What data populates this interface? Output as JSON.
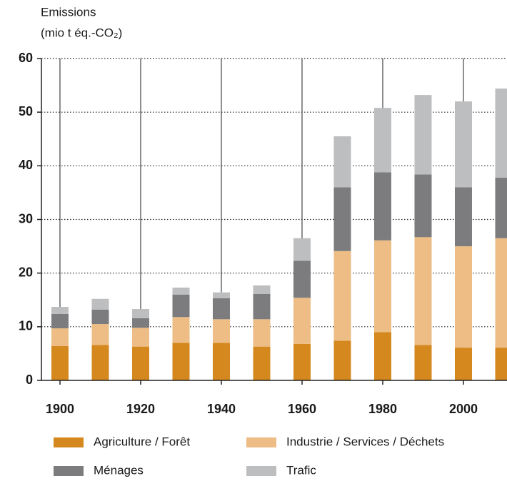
{
  "chart_data": {
    "type": "stacked_bar",
    "y_label": "Emissions",
    "y_unit": "(mio t éq.-CO₂)",
    "x": [
      1900,
      1910,
      1920,
      1930,
      1940,
      1950,
      1960,
      1970,
      1980,
      1990,
      2000,
      2010
    ],
    "series": [
      {
        "name": "Agriculture / Forêt",
        "color": "#d4881e",
        "values": [
          6.4,
          6.6,
          6.3,
          7.0,
          7.0,
          6.3,
          6.8,
          7.4,
          9.0,
          6.6,
          6.1,
          6.1
        ]
      },
      {
        "name": "Industrie / Services / Déchets",
        "color": "#edbd85",
        "values": [
          3.3,
          3.9,
          3.5,
          4.8,
          4.4,
          5.1,
          8.6,
          16.7,
          17.1,
          20.1,
          18.9,
          20.4
        ]
      },
      {
        "name": "Ménages",
        "color": "#7c7c7e",
        "values": [
          2.7,
          2.7,
          1.8,
          4.2,
          3.9,
          4.7,
          6.9,
          11.9,
          12.7,
          11.7,
          11.0,
          11.3
        ]
      },
      {
        "name": "Trafic",
        "color": "#bdbec0",
        "values": [
          1.3,
          2.0,
          1.7,
          1.3,
          1.1,
          1.6,
          4.2,
          9.5,
          12.0,
          14.8,
          16.0,
          16.6
        ]
      }
    ],
    "xlim": [
      1895.4,
      2010.8
    ],
    "xticks": [
      1900,
      1920,
      1940,
      1960,
      1980,
      2000
    ],
    "ylim": [
      0,
      60
    ],
    "yticks": [
      0,
      10,
      20,
      30,
      40,
      50,
      60
    ],
    "grid": true
  }
}
